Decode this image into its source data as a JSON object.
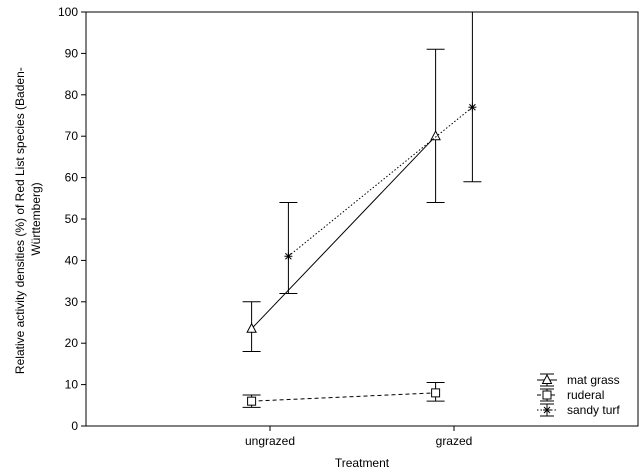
{
  "chart_data": {
    "type": "line",
    "xlabel": "Treatment",
    "ylabel_lines": [
      "Relative activity densities (%) of Red List species (Baden-",
      "Württemberg)"
    ],
    "categories": [
      "ungrazed",
      "grazed"
    ],
    "ylim": [
      0,
      100
    ],
    "yticks": [
      0,
      10,
      20,
      30,
      40,
      50,
      60,
      70,
      80,
      90,
      100
    ],
    "grid": false,
    "legend_position": "bottom-right",
    "series": [
      {
        "name": "mat grass",
        "marker": "triangle",
        "line_style": "solid",
        "values": [
          23.5,
          70
        ],
        "error_low": [
          18,
          54
        ],
        "error_high": [
          30,
          91
        ],
        "x_offset": -0.2
      },
      {
        "name": "ruderal",
        "marker": "square",
        "line_style": "dashed",
        "values": [
          6,
          8
        ],
        "error_low": [
          4.5,
          6
        ],
        "error_high": [
          7.5,
          10.5
        ],
        "x_offset": -0.2
      },
      {
        "name": "sandy turf",
        "marker": "star",
        "line_style": "dotted",
        "values": [
          41,
          77
        ],
        "error_low": [
          32,
          59
        ],
        "error_high": [
          54,
          100
        ],
        "x_offset": 0.2
      }
    ]
  }
}
